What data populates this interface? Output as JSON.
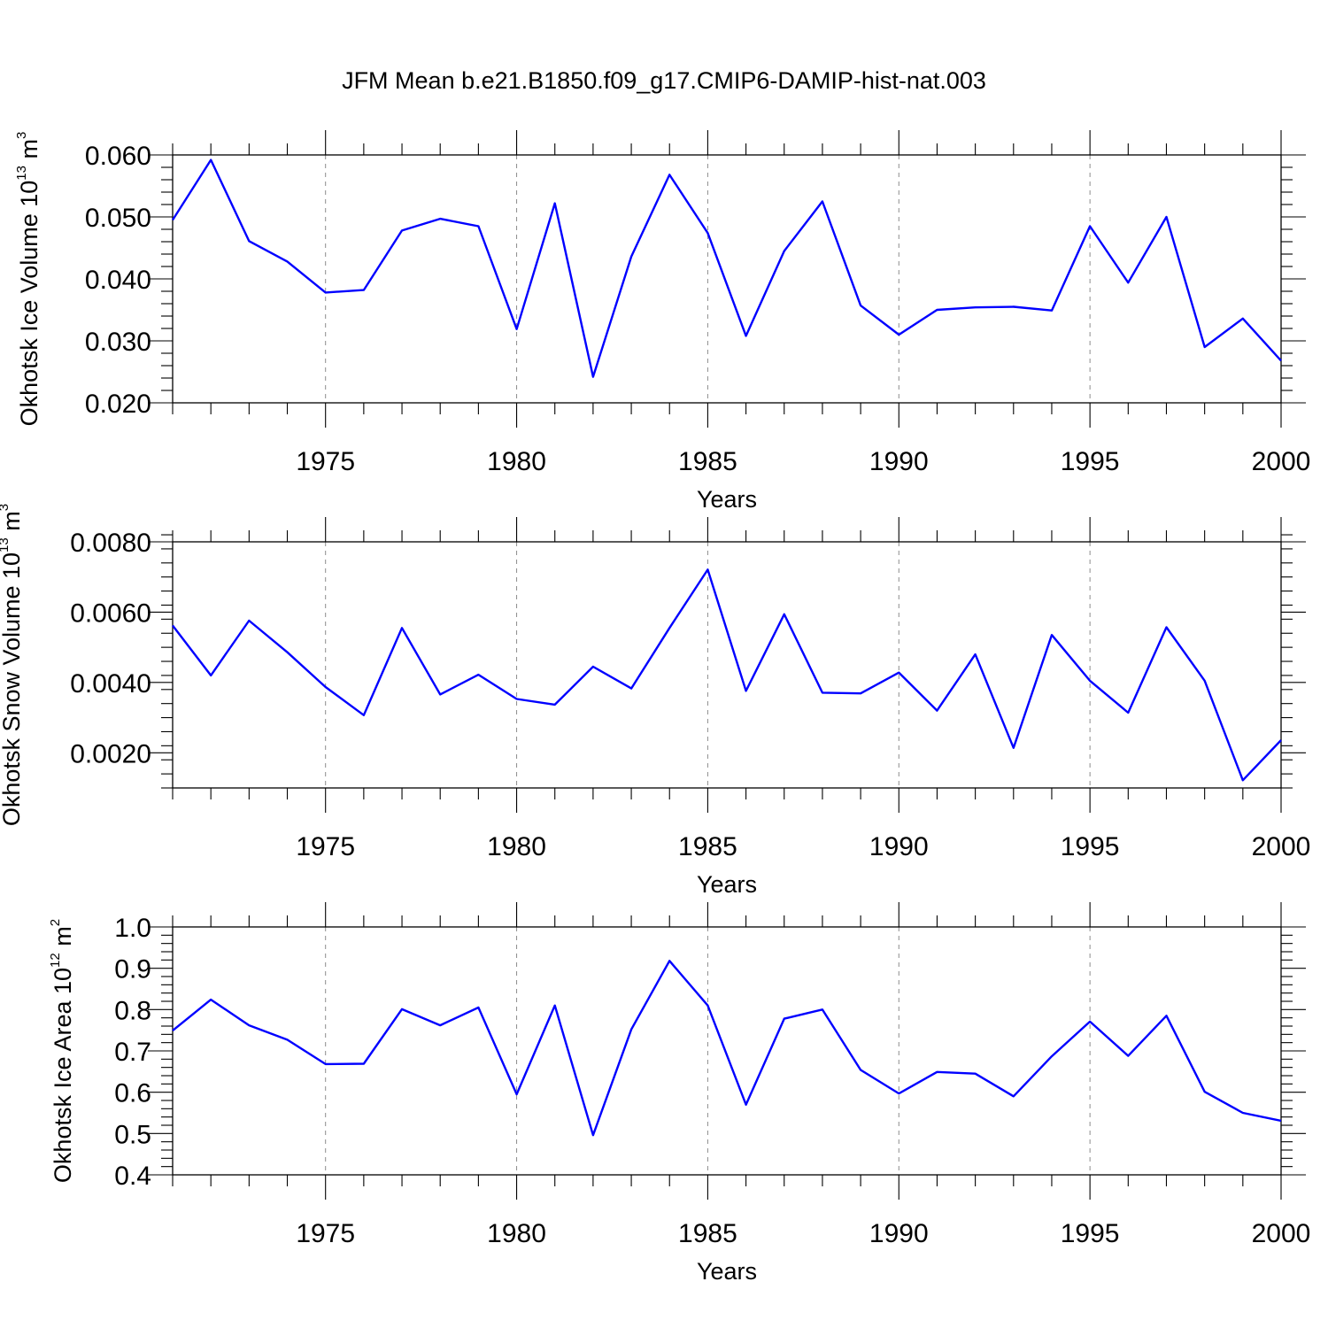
{
  "title": "JFM Mean b.e21.B1850.f09_g17.CMIP6-DAMIP-hist-nat.003",
  "line_color": "#0000ff",
  "chart_data": [
    {
      "type": "line",
      "name": "ice-volume",
      "ylabel": "Okhotsk Ice Volume 10",
      "ylabel_exp": "13",
      "ylabel_unit": "m",
      "ylabel_unit_exp": "3",
      "xlabel": "Years",
      "xlim": [
        1971,
        2000
      ],
      "ylim": [
        0.02,
        0.06
      ],
      "xticks": [
        1975,
        1980,
        1985,
        1990,
        1995,
        2000
      ],
      "yticks": [
        0.02,
        0.03,
        0.04,
        0.05,
        0.06
      ],
      "ytick_labels": [
        "0.020",
        "0.030",
        "0.040",
        "0.050",
        "0.060"
      ],
      "yminor_step": 0.002,
      "x": [
        1971,
        1972,
        1973,
        1974,
        1975,
        1976,
        1977,
        1978,
        1979,
        1980,
        1981,
        1982,
        1983,
        1984,
        1985,
        1986,
        1987,
        1988,
        1989,
        1990,
        1991,
        1992,
        1993,
        1994,
        1995,
        1996,
        1997,
        1998,
        1999,
        2000
      ],
      "values": [
        0.0495,
        0.0592,
        0.0461,
        0.0428,
        0.0378,
        0.0382,
        0.0478,
        0.0497,
        0.0485,
        0.0319,
        0.0522,
        0.0242,
        0.0436,
        0.0568,
        0.0474,
        0.0308,
        0.0445,
        0.0525,
        0.0357,
        0.031,
        0.035,
        0.0354,
        0.0355,
        0.0349,
        0.0485,
        0.0394,
        0.05,
        0.029,
        0.0336,
        0.0268
      ]
    },
    {
      "type": "line",
      "name": "snow-volume",
      "ylabel": "Okhotsk Snow Volume 10",
      "ylabel_exp": "13",
      "ylabel_unit": "m",
      "ylabel_unit_exp": "3",
      "xlabel": "Years",
      "xlim": [
        1971,
        2000
      ],
      "ylim": [
        0.001,
        0.008
      ],
      "xticks": [
        1975,
        1980,
        1985,
        1990,
        1995,
        2000
      ],
      "yticks": [
        0.002,
        0.004,
        0.006,
        0.008
      ],
      "ytick_labels": [
        "0.0020",
        "0.0040",
        "0.0060",
        "0.0080"
      ],
      "yminor_step": 0.0004,
      "x": [
        1971,
        1972,
        1973,
        1974,
        1975,
        1976,
        1977,
        1978,
        1979,
        1980,
        1981,
        1982,
        1983,
        1984,
        1985,
        1986,
        1987,
        1988,
        1989,
        1990,
        1991,
        1992,
        1993,
        1994,
        1995,
        1996,
        1997,
        1998,
        1999,
        2000
      ],
      "values": [
        0.00562,
        0.0042,
        0.00576,
        0.00486,
        0.00387,
        0.00307,
        0.00555,
        0.00366,
        0.00422,
        0.00353,
        0.00337,
        0.00445,
        0.00383,
        0.00555,
        0.00721,
        0.00376,
        0.00594,
        0.00371,
        0.00369,
        0.00428,
        0.0032,
        0.0048,
        0.00214,
        0.00535,
        0.00405,
        0.00314,
        0.00557,
        0.00405,
        0.00122,
        0.00236
      ]
    },
    {
      "type": "line",
      "name": "ice-area",
      "ylabel": "Okhotsk Ice Area 10",
      "ylabel_exp": "12",
      "ylabel_unit": "m",
      "ylabel_unit_exp": "2",
      "xlabel": "Years",
      "xlim": [
        1971,
        2000
      ],
      "ylim": [
        0.4,
        1.0
      ],
      "xticks": [
        1975,
        1980,
        1985,
        1990,
        1995,
        2000
      ],
      "yticks": [
        0.4,
        0.5,
        0.6,
        0.7,
        0.8,
        0.9,
        1.0
      ],
      "ytick_labels": [
        "0.4",
        "0.5",
        "0.6",
        "0.7",
        "0.8",
        "0.9",
        "1.0"
      ],
      "yminor_step": 0.02,
      "x": [
        1971,
        1972,
        1973,
        1974,
        1975,
        1976,
        1977,
        1978,
        1979,
        1980,
        1981,
        1982,
        1983,
        1984,
        1985,
        1986,
        1987,
        1988,
        1989,
        1990,
        1991,
        1992,
        1993,
        1994,
        1995,
        1996,
        1997,
        1998,
        1999,
        2000
      ],
      "values": [
        0.749,
        0.824,
        0.762,
        0.727,
        0.668,
        0.669,
        0.801,
        0.762,
        0.805,
        0.595,
        0.81,
        0.496,
        0.752,
        0.918,
        0.81,
        0.57,
        0.778,
        0.8,
        0.654,
        0.597,
        0.649,
        0.645,
        0.59,
        0.687,
        0.771,
        0.688,
        0.785,
        0.601,
        0.55,
        0.531
      ]
    }
  ]
}
